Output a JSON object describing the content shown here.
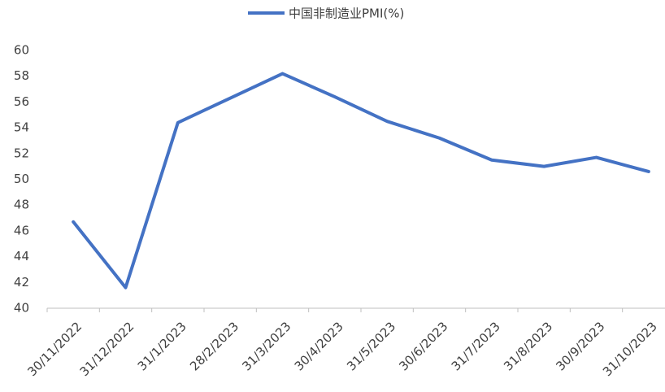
{
  "chart_data": {
    "type": "line",
    "categories": [
      "30/11/2022",
      "31/12/2022",
      "31/1/2023",
      "28/2/2023",
      "31/3/2023",
      "30/4/2023",
      "31/5/2023",
      "30/6/2023",
      "31/7/2023",
      "31/8/2023",
      "30/9/2023",
      "31/10/2023"
    ],
    "series": [
      {
        "name": "中国非制造业PMI(%)",
        "color": "#4472c4",
        "values": [
          46.7,
          41.6,
          54.4,
          56.3,
          58.2,
          56.4,
          54.5,
          53.2,
          51.5,
          51.0,
          51.7,
          50.6
        ]
      }
    ],
    "ylim": [
      40,
      60
    ],
    "yticks": [
      40,
      42,
      44,
      46,
      48,
      50,
      52,
      54,
      56,
      58,
      60
    ],
    "grid": false,
    "legend": "top"
  }
}
